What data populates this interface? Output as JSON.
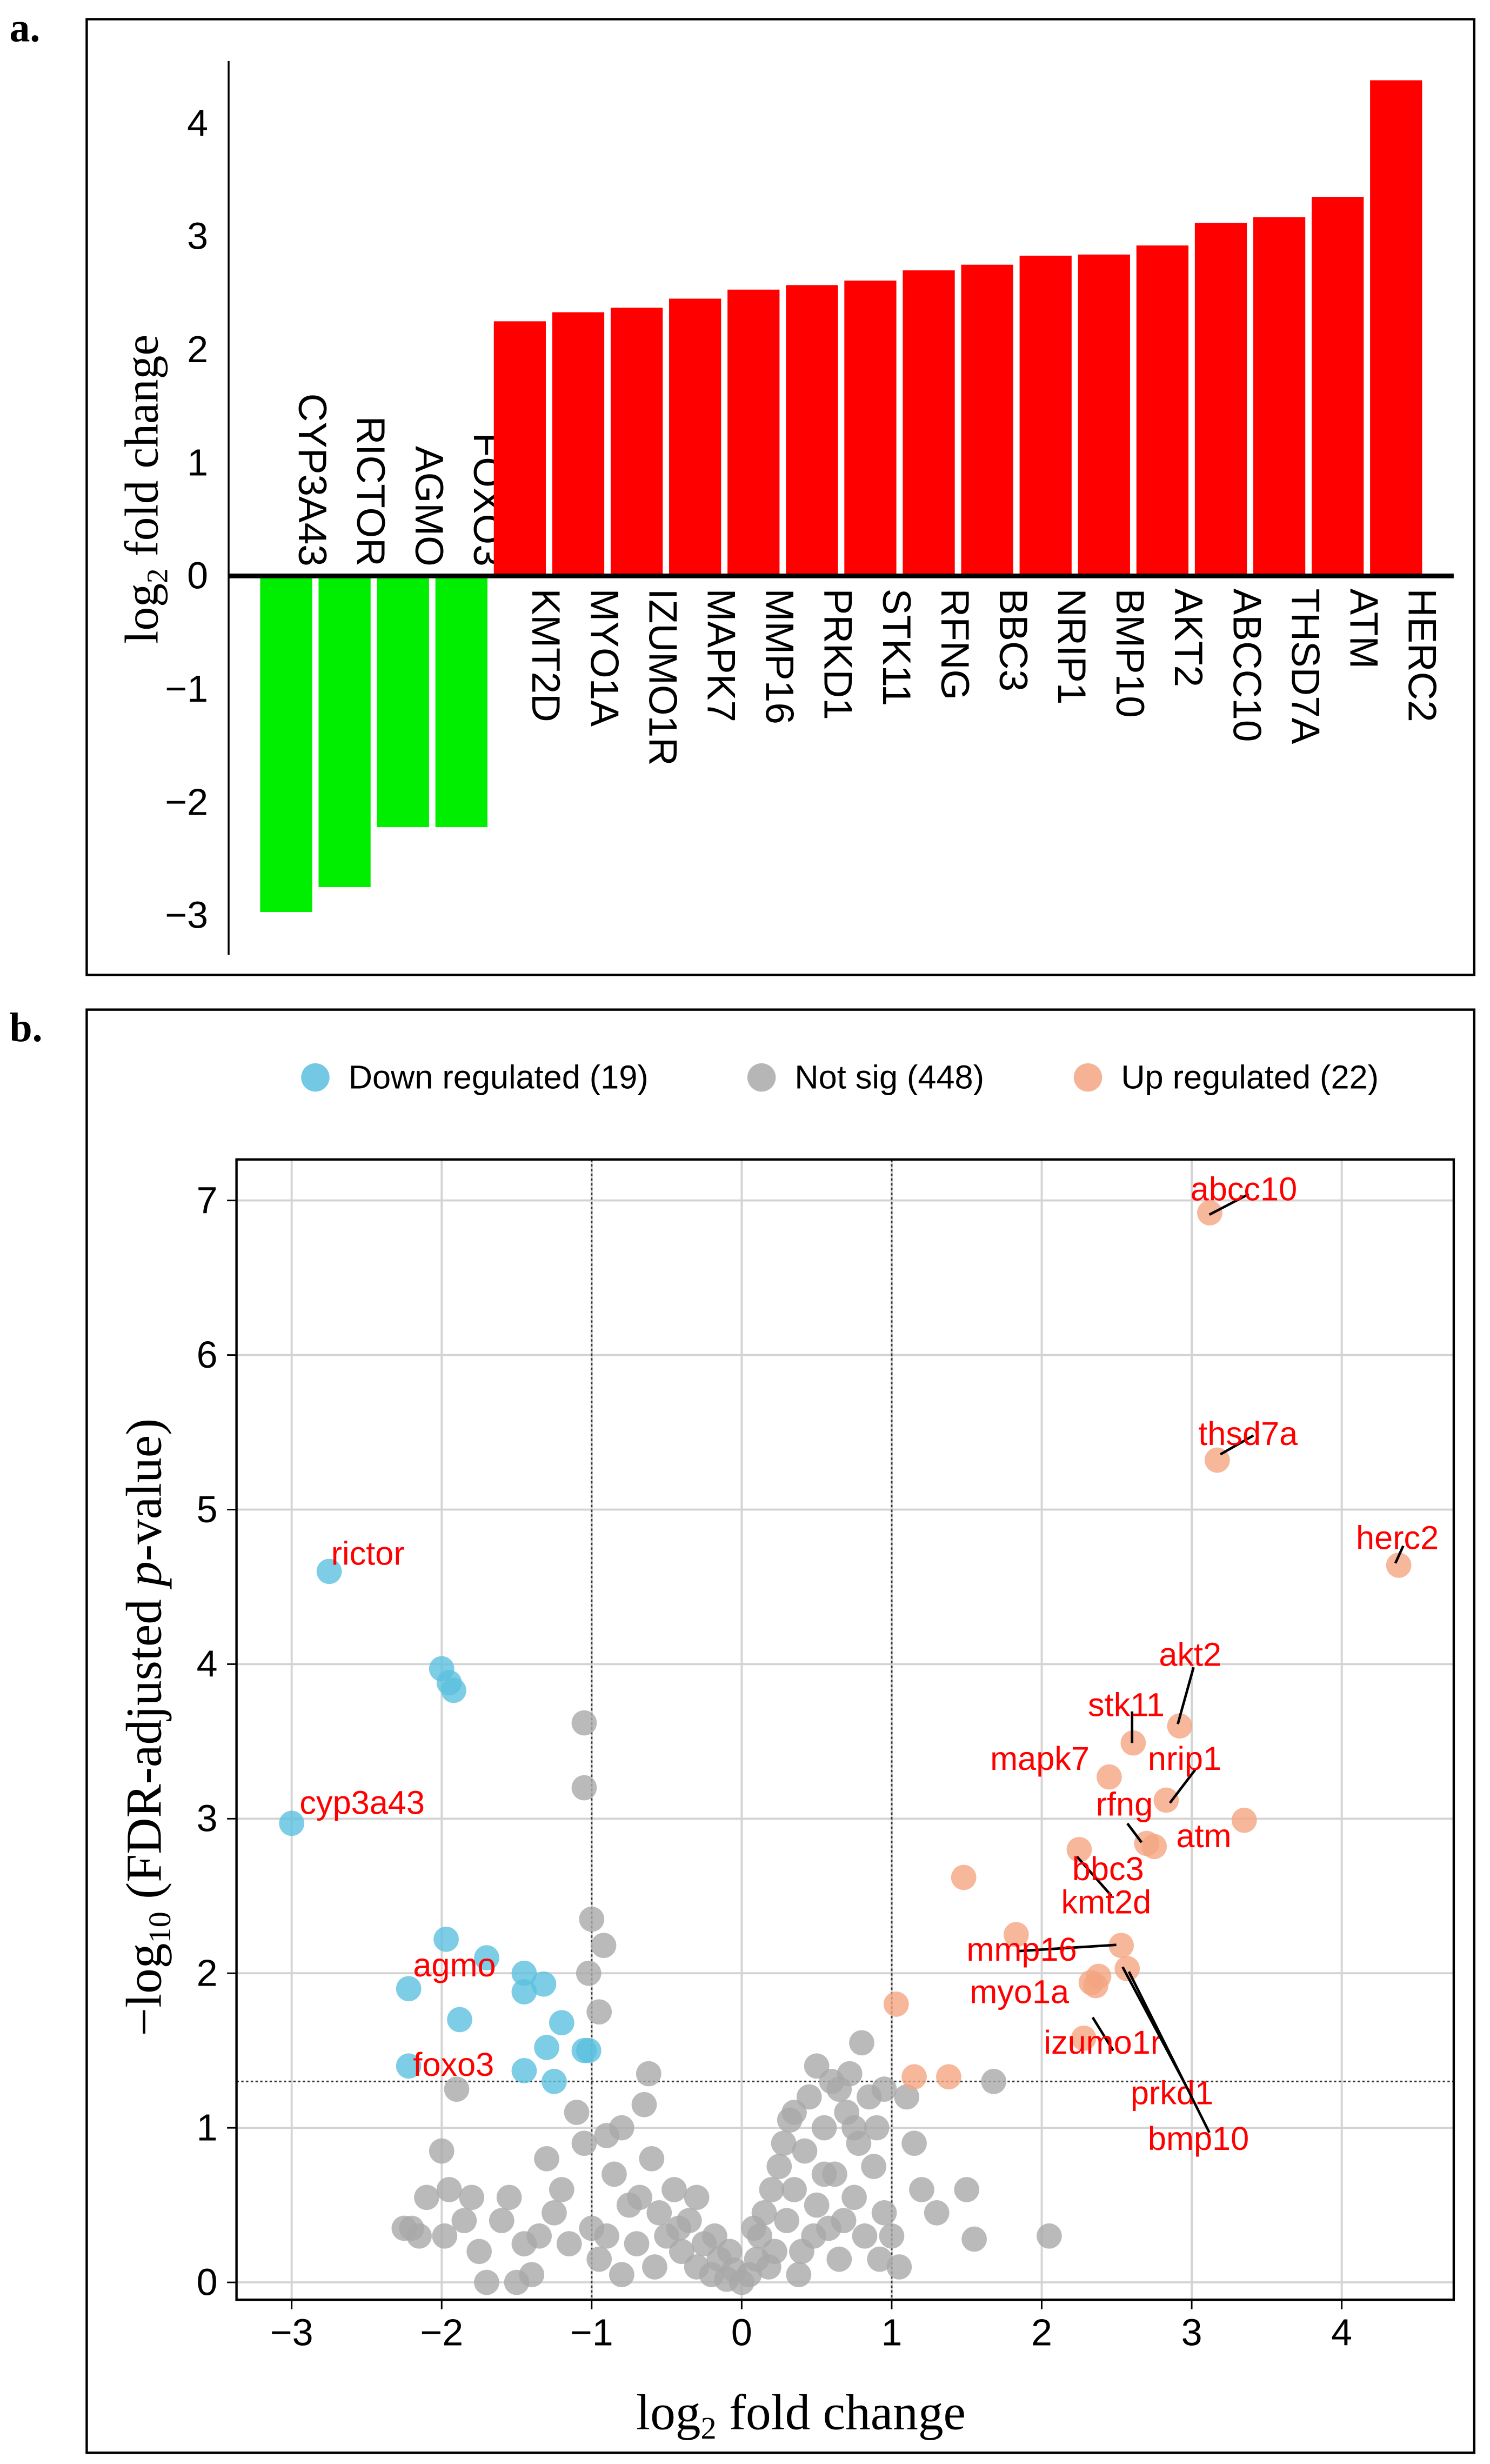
{
  "chart_data": [
    {
      "panel_label": "a.",
      "type": "bar",
      "ylabel_main": "log",
      "ylabel_sub": "2",
      "ylabel_rest": " fold change",
      "yticks": [
        -3,
        -2,
        -1,
        0,
        1,
        2,
        3,
        4
      ],
      "ylim": [
        -3.2,
        4.5
      ],
      "categories": [
        "CYP3A43",
        "RICTOR",
        "AGMO",
        "FOXO3",
        "KMT2D",
        "MYO1A",
        "IZUMO1R",
        "MAPK7",
        "MMP16",
        "PRKD1",
        "STK11",
        "RFNG",
        "BBC3",
        "NRIP1",
        "BMP10",
        "AKT2",
        "ABCC10",
        "THSD7A",
        "ATM",
        "HERC2"
      ],
      "values": [
        -2.97,
        -2.75,
        -2.22,
        -2.22,
        2.25,
        2.33,
        2.37,
        2.45,
        2.53,
        2.57,
        2.61,
        2.7,
        2.75,
        2.83,
        2.84,
        2.92,
        3.12,
        3.17,
        3.35,
        4.38
      ],
      "colors": {
        "down": "#00ee00",
        "up": "#ff0000"
      }
    },
    {
      "panel_label": "b.",
      "type": "scatter",
      "xlabel_main": "log",
      "xlabel_sub": "2",
      "xlabel_rest": " fold change",
      "ylabel_pre": "−log",
      "ylabel_sub": "10",
      "ylabel_mid": " (FDR-adjusted ",
      "ylabel_italic": "p",
      "ylabel_post": "-value)",
      "xticks": [
        -3,
        -2,
        -1,
        0,
        1,
        2,
        3,
        4
      ],
      "xtick_labels": [
        "−3",
        "−2",
        "−1",
        "0",
        "1",
        "2",
        "3",
        "4"
      ],
      "yticks": [
        0,
        1,
        2,
        3,
        4,
        5,
        6,
        7
      ],
      "xlim": [
        -3.35,
        4.75
      ],
      "ylim": [
        -0.1,
        7.3
      ],
      "fc_threshold": 1,
      "p_threshold": 1.3,
      "grid": true,
      "legend_position": "top",
      "legend": [
        {
          "label": "Down regulated (19)",
          "color": "#5bc0de"
        },
        {
          "label": "Not sig (448)",
          "color": "#a9a9a9"
        },
        {
          "label": "Up regulated (22)",
          "color": "#f4a582"
        }
      ],
      "down": [
        [
          -2.75,
          4.6
        ],
        [
          -3.0,
          2.97
        ],
        [
          -2.22,
          1.9
        ],
        [
          -2.22,
          1.4
        ],
        [
          -2.0,
          3.97
        ],
        [
          -1.95,
          3.88
        ],
        [
          -1.92,
          3.83
        ],
        [
          -1.97,
          2.22
        ],
        [
          -1.88,
          1.7
        ],
        [
          -1.7,
          2.1
        ],
        [
          -1.45,
          2.0
        ],
        [
          -1.45,
          1.88
        ],
        [
          -1.32,
          1.93
        ],
        [
          -1.3,
          1.52
        ],
        [
          -1.2,
          1.68
        ],
        [
          -1.45,
          1.37
        ],
        [
          -1.25,
          1.3
        ],
        [
          -1.02,
          1.5
        ],
        [
          -1.05,
          1.5
        ]
      ],
      "up": [
        [
          3.12,
          6.92
        ],
        [
          3.17,
          5.32
        ],
        [
          4.38,
          4.64
        ],
        [
          2.92,
          3.6
        ],
        [
          2.61,
          3.49
        ],
        [
          2.45,
          3.27
        ],
        [
          2.83,
          3.12
        ],
        [
          2.7,
          2.84
        ],
        [
          3.35,
          2.99
        ],
        [
          2.75,
          2.82
        ],
        [
          2.25,
          2.8
        ],
        [
          2.53,
          2.18
        ],
        [
          2.33,
          1.94
        ],
        [
          2.28,
          1.58
        ],
        [
          2.57,
          2.03
        ],
        [
          2.38,
          1.98
        ],
        [
          1.48,
          2.62
        ],
        [
          1.83,
          2.25
        ],
        [
          1.03,
          1.8
        ],
        [
          1.15,
          1.33
        ],
        [
          1.38,
          1.33
        ],
        [
          2.36,
          1.92
        ]
      ],
      "not_sig": [
        [
          -1.05,
          3.62
        ],
        [
          -1.05,
          3.2
        ],
        [
          -1.0,
          2.35
        ],
        [
          -0.92,
          2.18
        ],
        [
          -1.02,
          2.0
        ],
        [
          -0.95,
          1.75
        ],
        [
          -1.9,
          1.25
        ],
        [
          -2.0,
          0.85
        ],
        [
          -2.2,
          0.35
        ],
        [
          -2.1,
          0.55
        ],
        [
          -1.95,
          0.6
        ],
        [
          -1.85,
          0.4
        ],
        [
          -1.75,
          0.2
        ],
        [
          -1.7,
          0.0
        ],
        [
          -1.55,
          0.55
        ],
        [
          -1.45,
          0.25
        ],
        [
          -1.4,
          0.05
        ],
        [
          -1.3,
          0.8
        ],
        [
          -1.25,
          0.45
        ],
        [
          -1.2,
          0.6
        ],
        [
          -1.1,
          1.1
        ],
        [
          -1.05,
          0.9
        ],
        [
          -1.0,
          0.35
        ],
        [
          -0.95,
          0.15
        ],
        [
          -0.9,
          0.95
        ],
        [
          -0.85,
          0.7
        ],
        [
          -0.8,
          1.0
        ],
        [
          -0.75,
          0.5
        ],
        [
          -0.7,
          0.25
        ],
        [
          -0.65,
          1.15
        ],
        [
          -0.62,
          1.35
        ],
        [
          -0.6,
          0.8
        ],
        [
          -0.55,
          0.45
        ],
        [
          -0.5,
          0.3
        ],
        [
          -0.45,
          0.6
        ],
        [
          -0.4,
          0.2
        ],
        [
          -0.35,
          0.4
        ],
        [
          -0.3,
          0.1
        ],
        [
          -0.25,
          0.25
        ],
        [
          -0.2,
          0.05
        ],
        [
          -0.15,
          0.15
        ],
        [
          -0.1,
          0.02
        ],
        [
          -0.05,
          0.08
        ],
        [
          0.0,
          0.0
        ],
        [
          0.05,
          0.05
        ],
        [
          0.1,
          0.15
        ],
        [
          0.12,
          0.3
        ],
        [
          0.15,
          0.45
        ],
        [
          0.2,
          0.6
        ],
        [
          0.22,
          0.2
        ],
        [
          0.25,
          0.75
        ],
        [
          0.28,
          0.9
        ],
        [
          0.3,
          0.4
        ],
        [
          0.32,
          1.05
        ],
        [
          0.35,
          0.6
        ],
        [
          0.4,
          0.2
        ],
        [
          0.42,
          0.85
        ],
        [
          0.45,
          1.2
        ],
        [
          0.5,
          1.4
        ],
        [
          0.5,
          0.5
        ],
        [
          0.55,
          1.0
        ],
        [
          0.58,
          0.35
        ],
        [
          0.6,
          1.3
        ],
        [
          0.62,
          0.7
        ],
        [
          0.65,
          0.15
        ],
        [
          0.7,
          1.1
        ],
        [
          0.72,
          1.35
        ],
        [
          0.75,
          0.55
        ],
        [
          0.78,
          0.9
        ],
        [
          0.8,
          1.55
        ],
        [
          0.82,
          0.3
        ],
        [
          0.85,
          1.2
        ],
        [
          0.88,
          0.75
        ],
        [
          0.9,
          1.0
        ],
        [
          0.95,
          0.45
        ],
        [
          1.0,
          0.3
        ],
        [
          1.05,
          0.1
        ],
        [
          1.1,
          1.2
        ],
        [
          1.15,
          0.9
        ],
        [
          1.2,
          0.6
        ],
        [
          1.3,
          0.45
        ],
        [
          1.5,
          0.6
        ],
        [
          1.55,
          0.28
        ],
        [
          1.68,
          1.3
        ],
        [
          2.05,
          0.3
        ],
        [
          -2.25,
          0.35
        ],
        [
          -2.15,
          0.3
        ],
        [
          -1.98,
          0.3
        ],
        [
          -1.8,
          0.55
        ],
        [
          -1.6,
          0.4
        ],
        [
          -1.5,
          0.0
        ],
        [
          -1.35,
          0.3
        ],
        [
          -1.15,
          0.25
        ],
        [
          -0.9,
          0.3
        ],
        [
          -0.8,
          0.05
        ],
        [
          -0.68,
          0.55
        ],
        [
          -0.58,
          0.1
        ],
        [
          -0.42,
          0.35
        ],
        [
          -0.3,
          0.55
        ],
        [
          -0.18,
          0.3
        ],
        [
          -0.08,
          0.2
        ],
        [
          0.08,
          0.35
        ],
        [
          0.18,
          0.1
        ],
        [
          0.38,
          0.05
        ],
        [
          0.48,
          0.3
        ],
        [
          0.68,
          0.4
        ],
        [
          0.92,
          0.15
        ],
        [
          0.55,
          0.7
        ],
        [
          0.35,
          1.1
        ],
        [
          0.65,
          1.25
        ],
        [
          0.75,
          1.0
        ],
        [
          0.95,
          1.25
        ]
      ],
      "labels": {
        "rictor": "rictor",
        "cyp3a43": "cyp3a43",
        "agmo": "agmo",
        "foxo3": "foxo3",
        "abcc10": "abcc10",
        "thsd7a": "thsd7a",
        "herc2": "herc2",
        "akt2": "akt2",
        "stk11": "stk11",
        "mapk7": "mapk7",
        "nrip1": "nrip1",
        "rfng": "rfng",
        "atm": "atm",
        "bbc3": "bbc3",
        "kmt2d": "kmt2d",
        "mmp16": "mmp16",
        "myo1a": "myo1a",
        "izumo1r": "izumo1r",
        "prkd1": "prkd1",
        "bmp10": "bmp10"
      },
      "label_color": "#ff0000"
    }
  ]
}
